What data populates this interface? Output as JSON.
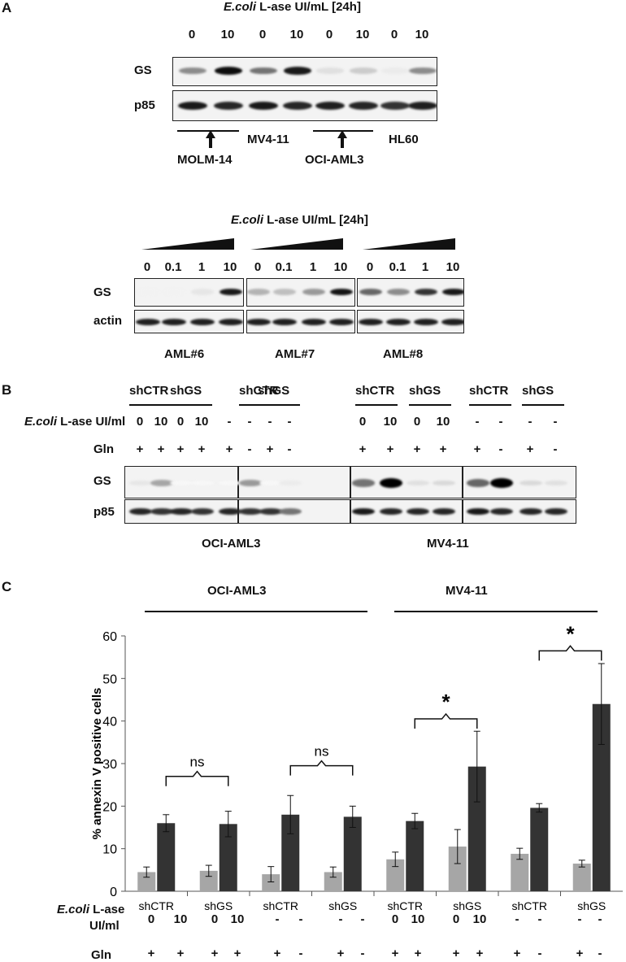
{
  "panel_a": {
    "letter": "A",
    "top": {
      "title_italic": "E.coli",
      "title_rest": " L-ase UI/mL [24h]",
      "lanes": [
        "0",
        "10",
        "0",
        "10",
        "0",
        "10",
        "0",
        "10"
      ],
      "row_labels": [
        "GS",
        "p85"
      ],
      "cell_lines": [
        "MOLM-14",
        "MV4-11",
        "OCI-AML3",
        "HL60"
      ]
    },
    "bottom": {
      "title_italic": "E.coli",
      "title_rest": " L-ase UI/mL [24h]",
      "lanes": [
        "0",
        "0.1",
        "1",
        "10",
        "0",
        "0.1",
        "1",
        "10",
        "0",
        "0.1",
        "1",
        "10"
      ],
      "row_labels": [
        "GS",
        "actin"
      ],
      "samples": [
        "AML#6",
        "AML#7",
        "AML#8"
      ]
    }
  },
  "panel_b": {
    "letter": "B",
    "groups": [
      "shCTR",
      "shGS",
      "shCTR",
      "shGS",
      "shCTR",
      "shGS",
      "shCTR",
      "shGS"
    ],
    "lase_label_italic": "E.coli",
    "lase_label_rest": " L-ase UI/ml",
    "lase_values": [
      "0",
      "10",
      "0",
      "10",
      "-",
      "-",
      "-",
      "-",
      "0",
      "10",
      "0",
      "10",
      "-",
      "-",
      "-",
      "-"
    ],
    "gln_label": "Gln",
    "gln_values": [
      "+",
      "+",
      "+",
      "+",
      "+",
      "-",
      "+",
      "-",
      "+",
      "+",
      "+",
      "+",
      "+",
      "-",
      "+",
      "-"
    ],
    "row_labels": [
      "GS",
      "p85"
    ],
    "cell_lines": [
      "OCI-AML3",
      "MV4-11"
    ]
  },
  "panel_c": {
    "letter": "C",
    "cell_lines": [
      "OCI-AML3",
      "MV4-11"
    ],
    "ns_labels": [
      "ns",
      "ns"
    ],
    "star_labels": [
      "*",
      "*"
    ],
    "lase_label_italic": "E.coli",
    "lase_label_rest": " L-ase",
    "lase_label_line2": "UI/ml",
    "lase_values": [
      "0",
      "10",
      "0",
      "10",
      "-",
      "-",
      "-",
      "-",
      "0",
      "10",
      "0",
      "10",
      "-",
      "-",
      "-",
      "-"
    ],
    "gln_label": "Gln",
    "gln_values": [
      "+",
      "+",
      "+",
      "+",
      "+",
      "-",
      "+",
      "-",
      "+",
      "+",
      "+",
      "+",
      "+",
      "-",
      "+",
      "-"
    ]
  },
  "chart_data": {
    "type": "bar",
    "categories": [
      "shCTR",
      "shGS",
      "shCTR",
      "shGS",
      "shCTR",
      "shGS",
      "shCTR",
      "shGS"
    ],
    "ylabel": "% annexin V positive cells",
    "ylim": [
      0,
      60
    ],
    "yticks": [
      0,
      10,
      20,
      30,
      40,
      50,
      60
    ],
    "series": [
      {
        "values": [
          4.5,
          4.8,
          4.0,
          4.5,
          7.5,
          10.5,
          8.8,
          6.5
        ],
        "errors": [
          1.2,
          1.3,
          1.8,
          1.2,
          1.7,
          4.0,
          1.3,
          0.8
        ],
        "color": "#a6a6a6"
      },
      {
        "values": [
          16.0,
          15.8,
          18.0,
          17.5,
          16.5,
          29.3,
          19.6,
          44.0
        ],
        "errors": [
          2.0,
          3.0,
          4.5,
          2.5,
          1.8,
          8.3,
          1.0,
          9.5
        ],
        "color": "#333333"
      }
    ],
    "grid": false
  }
}
